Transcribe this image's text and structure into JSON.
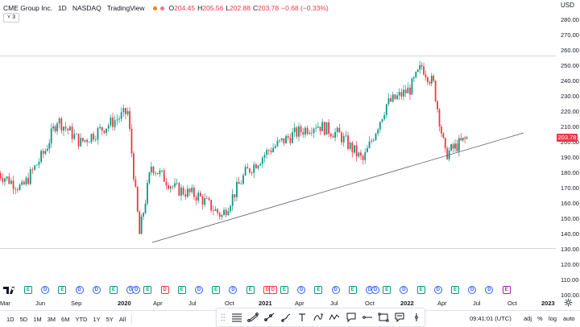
{
  "legend": {
    "symbol": "CME Group Inc.",
    "interval": "1D",
    "exchange": "NASDAQ",
    "source": "TradingView",
    "ohlc": [
      {
        "key": "O",
        "value": "204.45"
      },
      {
        "key": "H",
        "value": "205.56"
      },
      {
        "key": "L",
        "value": "202.88"
      },
      {
        "key": "C",
        "value": "203.78"
      }
    ],
    "change": "−0.68 (−0.33%)",
    "collapse_count": "3"
  },
  "price_axis": {
    "currency": "USD",
    "labels": [
      "280.00",
      "270.00",
      "260.00",
      "250.00",
      "240.00",
      "230.00",
      "220.00",
      "210.00",
      "200.00",
      "190.00",
      "180.00",
      "170.00",
      "160.00",
      "150.00",
      "140.00",
      "130.00",
      "120.00",
      "110.00",
      "100.00"
    ],
    "last_price": "203.78"
  },
  "time_axis": {
    "labels": [
      "Mar",
      "Jun",
      "Sep",
      "2020",
      "Apr",
      "Jul",
      "Oct",
      "2021",
      "Apr",
      "Jul",
      "Oct",
      "2022",
      "Apr",
      "Jul",
      "Oct",
      "2023"
    ]
  },
  "events": [
    "E",
    "D",
    "E",
    "D",
    "D",
    "E",
    "DD",
    "E",
    "D",
    "E",
    "D",
    "E",
    "D",
    "E",
    "DD",
    "E",
    "D",
    "E",
    "D",
    "E",
    "DD",
    "E",
    "D",
    "E",
    "D",
    "E",
    "D",
    "D",
    "E"
  ],
  "bottom": {
    "timeframes": [
      "1D",
      "5D",
      "1M",
      "3M",
      "6M",
      "YTD",
      "1Y",
      "5Y",
      "All"
    ],
    "clock": "09:41:01 (UTC)",
    "options": [
      "adj",
      "%",
      "log",
      "auto"
    ]
  },
  "drawing_tools": [
    "horizontal-lines-icon",
    "trend-line-icon",
    "ray-icon",
    "pen-icon",
    "text-icon",
    "path-icon",
    "polyline-icon",
    "callout-icon",
    "measure-icon",
    "rectangle-icon",
    "note-icon",
    "vertical-line-icon"
  ],
  "colors": {
    "up": "#089981",
    "down": "#f23645",
    "trendline": "#555b66",
    "accent": "#2962ff"
  },
  "chart_data": {
    "type": "candlestick",
    "title": "CME Group Inc. · 1D · NASDAQ",
    "y_range": [
      100,
      285
    ],
    "x_range": [
      "2019-03",
      "2023-02"
    ],
    "series": [
      {
        "name": "CME Group Inc.",
        "approx_close_path": [
          [
            "2019-03",
            180
          ],
          [
            "2019-05",
            170
          ],
          [
            "2019-07",
            195
          ],
          [
            "2019-08",
            215
          ],
          [
            "2019-10",
            200
          ],
          [
            "2019-12",
            210
          ],
          [
            "2020-02",
            220
          ],
          [
            "2020-03",
            140
          ],
          [
            "2020-04",
            185
          ],
          [
            "2020-06",
            170
          ],
          [
            "2020-08",
            165
          ],
          [
            "2020-10",
            152
          ],
          [
            "2020-12",
            180
          ],
          [
            "2021-02",
            195
          ],
          [
            "2021-04",
            205
          ],
          [
            "2021-06",
            212
          ],
          [
            "2021-08",
            205
          ],
          [
            "2021-10",
            188
          ],
          [
            "2021-12",
            225
          ],
          [
            "2022-02",
            235
          ],
          [
            "2022-03",
            250
          ],
          [
            "2022-04",
            238
          ],
          [
            "2022-05",
            192
          ],
          [
            "2022-06",
            198
          ],
          [
            "2022-07",
            203.78
          ]
        ]
      }
    ]
  }
}
